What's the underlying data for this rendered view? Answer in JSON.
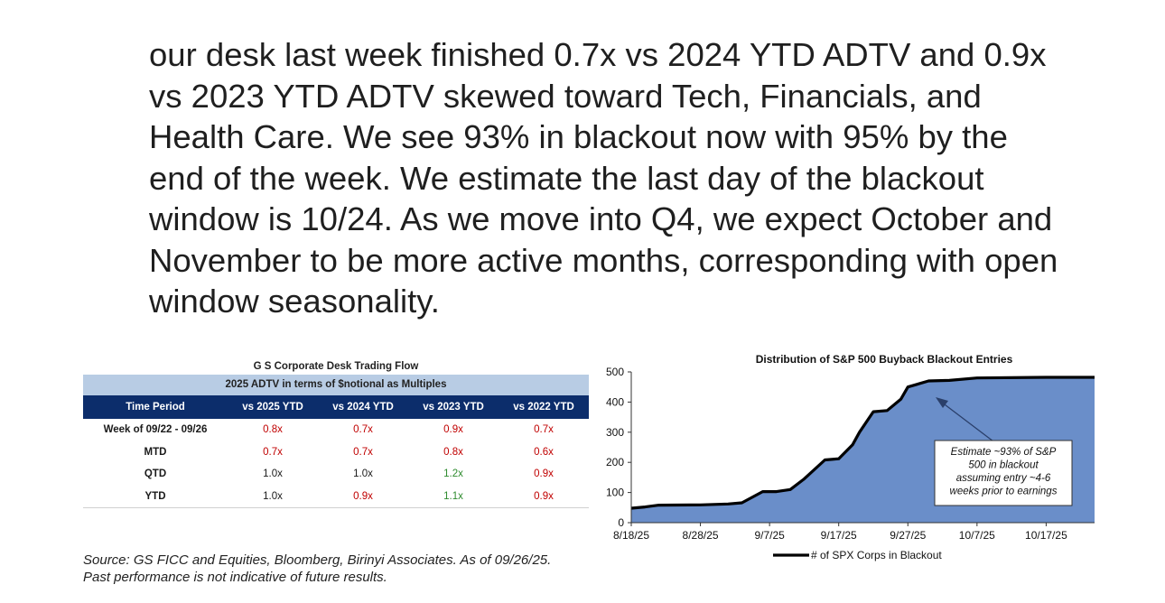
{
  "main_text": {
    "lines": [
      "our desk last week finished 0.7x vs 2024 YTD ADTV and 0.9x",
      "vs 2023 YTD ADTV skewed toward Tech, Financials, and",
      "Health Care. We see 93% in blackout now with 95% by the",
      "end of the week. We estimate the last day of the blackout",
      "window is 10/24. As we move into Q4, we expect October and",
      "November to be more active months, corresponding with open",
      "window seasonality."
    ]
  },
  "table": {
    "title": "G S Corporate Desk Trading Flow",
    "subtitle": "2025 ADTV in terms of $notional as Multiples",
    "headers": [
      "Time Period",
      "vs 2025 YTD",
      "vs 2024 YTD",
      "vs 2023 YTD",
      "vs 2022 YTD"
    ],
    "rows": [
      {
        "period": "Week of 09/22 - 09/26",
        "values": [
          "0.8x",
          "0.7x",
          "0.9x",
          "0.7x"
        ],
        "colors": [
          "red",
          "red",
          "red",
          "red"
        ]
      },
      {
        "period": "MTD",
        "values": [
          "0.7x",
          "0.7x",
          "0.8x",
          "0.6x"
        ],
        "colors": [
          "red",
          "red",
          "red",
          "red"
        ]
      },
      {
        "period": "QTD",
        "values": [
          "1.0x",
          "1.0x",
          "1.2x",
          "0.9x"
        ],
        "colors": [
          "black",
          "black",
          "green",
          "red"
        ]
      },
      {
        "period": "YTD",
        "values": [
          "1.0x",
          "0.9x",
          "1.1x",
          "0.9x"
        ],
        "colors": [
          "black",
          "red",
          "green",
          "red"
        ]
      }
    ]
  },
  "source": {
    "line1": "Source: GS FICC and Equities, Bloomberg, Birinyi Associates. As of 09/26/25.",
    "line2": "Past performance is not indicative of future results."
  },
  "chart_data": {
    "type": "area",
    "title": "Distribution of S&P 500 Buyback Blackout Entries",
    "xlabel": "",
    "ylabel": "",
    "ylim": [
      0,
      500
    ],
    "yticks": [
      0,
      100,
      200,
      300,
      400,
      500
    ],
    "xlim": [
      "2025-08-18",
      "2025-10-24"
    ],
    "xticks": [
      "8/18/25",
      "8/28/25",
      "9/7/25",
      "9/17/25",
      "9/27/25",
      "10/7/25",
      "10/17/25"
    ],
    "series": [
      {
        "name": "# of SPX Corps in Blackout",
        "x": [
          "2025-08-18",
          "2025-08-20",
          "2025-08-22",
          "2025-08-28",
          "2025-09-01",
          "2025-09-03",
          "2025-09-06",
          "2025-09-08",
          "2025-09-10",
          "2025-09-12",
          "2025-09-15",
          "2025-09-16",
          "2025-09-17",
          "2025-09-19",
          "2025-09-20",
          "2025-09-22",
          "2025-09-24",
          "2025-09-26",
          "2025-09-27",
          "2025-09-30",
          "2025-10-03",
          "2025-10-07",
          "2025-10-17",
          "2025-10-24"
        ],
        "values": [
          48,
          52,
          58,
          59,
          62,
          66,
          103,
          103,
          110,
          145,
          208,
          210,
          212,
          258,
          300,
          368,
          372,
          410,
          450,
          470,
          472,
          480,
          482,
          482
        ]
      }
    ],
    "annotation": {
      "lines": [
        "Estimate ~93% of S&P",
        "500 in blackout",
        "assuming entry ~4-6",
        "weeks prior to earnings"
      ]
    },
    "colors": {
      "fill": "#6a8ec9",
      "line": "#000000"
    },
    "legend_position": "bottom-center",
    "grid": false
  }
}
